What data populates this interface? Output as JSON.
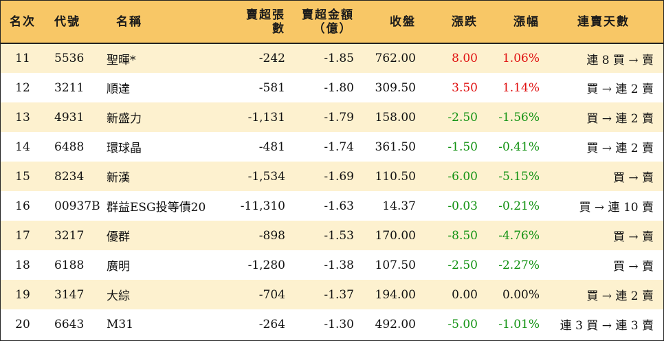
{
  "colors": {
    "header_bg": "#f8c766",
    "odd_row_bg": "#fdf1cf",
    "up": "#e01010",
    "down": "#129212",
    "flat": "#111111"
  },
  "table": {
    "headers": {
      "rank": "名次",
      "code": "代號",
      "name": "名稱",
      "net_sell_lots": "賣超張數",
      "net_sell_amount_line1": "賣超金額",
      "net_sell_amount_line2": "（億）",
      "close": "收盤",
      "change": "漲跌",
      "change_pct": "漲幅",
      "streak": "連賣天數"
    },
    "rows": [
      {
        "rank": "11",
        "code": "5536",
        "name": "聖暉*",
        "lots": "-242",
        "amount": "-1.85",
        "close": "762.00",
        "change": "8.00",
        "pct": "1.06%",
        "dir": "up",
        "streak": "連 8 買 → 賣"
      },
      {
        "rank": "12",
        "code": "3211",
        "name": "順達",
        "lots": "-581",
        "amount": "-1.80",
        "close": "309.50",
        "change": "3.50",
        "pct": "1.14%",
        "dir": "up",
        "streak": "買 → 連 2 賣"
      },
      {
        "rank": "13",
        "code": "4931",
        "name": "新盛力",
        "lots": "-1,131",
        "amount": "-1.79",
        "close": "158.00",
        "change": "-2.50",
        "pct": "-1.56%",
        "dir": "down",
        "streak": "買 → 連 2 賣"
      },
      {
        "rank": "14",
        "code": "6488",
        "name": "環球晶",
        "lots": "-481",
        "amount": "-1.74",
        "close": "361.50",
        "change": "-1.50",
        "pct": "-0.41%",
        "dir": "down",
        "streak": "買 → 連 2 賣"
      },
      {
        "rank": "15",
        "code": "8234",
        "name": "新漢",
        "lots": "-1,534",
        "amount": "-1.69",
        "close": "110.50",
        "change": "-6.00",
        "pct": "-5.15%",
        "dir": "down",
        "streak": "買 → 賣"
      },
      {
        "rank": "16",
        "code": "00937B",
        "name": "群益ESG投等債20",
        "lots": "-11,310",
        "amount": "-1.63",
        "close": "14.37",
        "change": "-0.03",
        "pct": "-0.21%",
        "dir": "down",
        "streak": "買 → 連 10 賣"
      },
      {
        "rank": "17",
        "code": "3217",
        "name": "優群",
        "lots": "-898",
        "amount": "-1.53",
        "close": "170.00",
        "change": "-8.50",
        "pct": "-4.76%",
        "dir": "down",
        "streak": "買 → 賣"
      },
      {
        "rank": "18",
        "code": "6188",
        "name": "廣明",
        "lots": "-1,280",
        "amount": "-1.38",
        "close": "107.50",
        "change": "-2.50",
        "pct": "-2.27%",
        "dir": "down",
        "streak": "買 → 賣"
      },
      {
        "rank": "19",
        "code": "3147",
        "name": "大綜",
        "lots": "-704",
        "amount": "-1.37",
        "close": "194.00",
        "change": "0.00",
        "pct": "0.00%",
        "dir": "flat",
        "streak": "買 → 連 2 賣"
      },
      {
        "rank": "20",
        "code": "6643",
        "name": "M31",
        "lots": "-264",
        "amount": "-1.30",
        "close": "492.00",
        "change": "-5.00",
        "pct": "-1.01%",
        "dir": "down",
        "streak": "連 3 買 → 連 3 賣"
      }
    ]
  }
}
